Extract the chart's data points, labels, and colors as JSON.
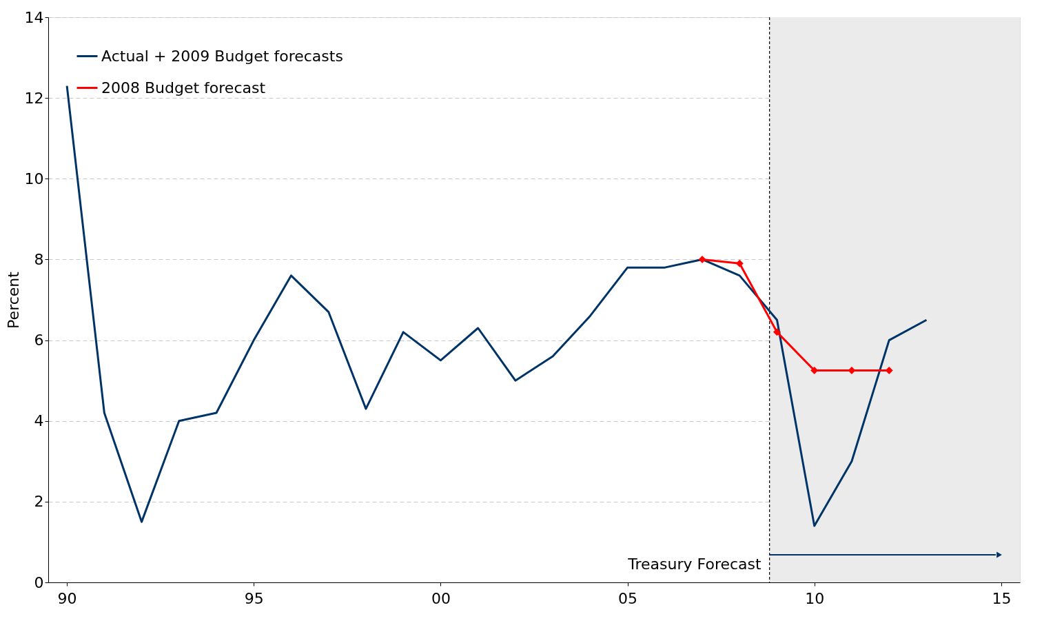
{
  "chart_data": {
    "type": "line",
    "ylabel": "Percent",
    "x": [
      1990,
      1991,
      1992,
      1993,
      1994,
      1995,
      1996,
      1997,
      1998,
      1999,
      2000,
      2001,
      2002,
      2003,
      2004,
      2005,
      2006,
      2007,
      2008,
      2009,
      2010,
      2011,
      2012,
      2013
    ],
    "series": [
      {
        "name": "Actual + 2009 Budget forecasts",
        "color": "#003366",
        "marker": "none",
        "values": [
          12.3,
          4.2,
          1.5,
          4.0,
          4.2,
          6.0,
          7.6,
          6.7,
          4.3,
          6.2,
          5.5,
          6.3,
          5.0,
          5.6,
          6.6,
          7.8,
          7.8,
          8.0,
          7.6,
          6.5,
          1.4,
          3.0,
          6.0,
          6.5
        ]
      },
      {
        "name": "2008 Budget forecast",
        "color": "#ff0000",
        "marker": "diamond",
        "x": [
          2007,
          2008,
          2009,
          2010,
          2011,
          2012
        ],
        "values": [
          8.0,
          7.9,
          6.2,
          5.25,
          5.25,
          5.25
        ]
      }
    ],
    "xlim": [
      1989.5,
      2015.5
    ],
    "xticks": [
      {
        "value": 1990,
        "label": "90"
      },
      {
        "value": 1995,
        "label": "95"
      },
      {
        "value": 2000,
        "label": "00"
      },
      {
        "value": 2005,
        "label": "05"
      },
      {
        "value": 2010,
        "label": "10"
      },
      {
        "value": 2015,
        "label": "15"
      }
    ],
    "ylim": [
      0,
      14
    ],
    "yticks": [
      0,
      2,
      4,
      6,
      8,
      10,
      12,
      14
    ],
    "grid": "y",
    "legend": "top left",
    "line_style": "solid",
    "ref_lines": [
      {
        "axis": "x",
        "value": 2008.8,
        "line_style": "dashed",
        "color": "#000000"
      }
    ],
    "bands": [
      {
        "axis": "x",
        "from": 2008.8,
        "to": 2015.5,
        "color": "#ebebeb"
      }
    ],
    "annotations": [
      "Treasury Forecast"
    ]
  }
}
